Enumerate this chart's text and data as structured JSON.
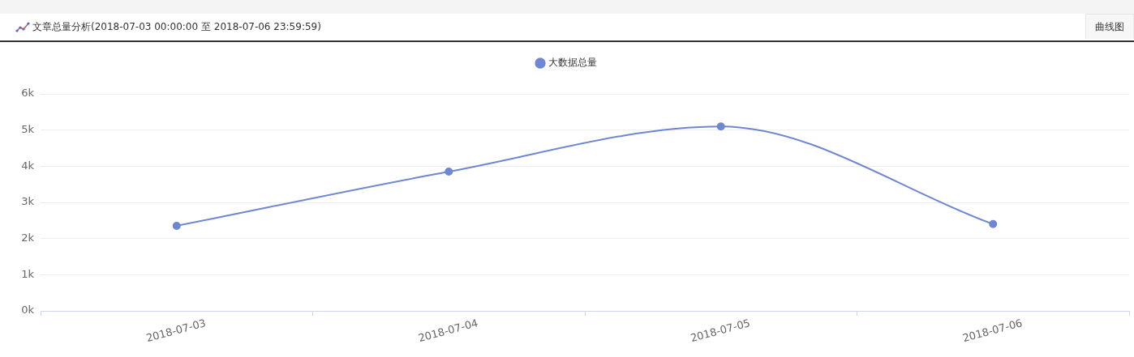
{
  "chart_data": {
    "type": "line",
    "title": "文章总量分析(2018-07-03 00:00:00 至 2018-07-06 23:59:59)",
    "annotations": [
      "曲线图"
    ],
    "categories": [
      "2018-07-03",
      "2018-07-04",
      "2018-07-05",
      "2018-07-06"
    ],
    "series": [
      {
        "name": "大数据总量",
        "color": "#6e87d2",
        "values": [
          2350,
          3850,
          5100,
          2400
        ]
      }
    ],
    "ylim": [
      0,
      6000
    ],
    "yticks": [
      {
        "value": 0,
        "label": "0k"
      },
      {
        "value": 1000,
        "label": "1k"
      },
      {
        "value": 2000,
        "label": "2k"
      },
      {
        "value": 3000,
        "label": "3k"
      },
      {
        "value": 4000,
        "label": "4k"
      },
      {
        "value": 5000,
        "label": "5k"
      },
      {
        "value": 6000,
        "label": "6k"
      }
    ],
    "grid": "y",
    "legend": "top",
    "marker": "circle",
    "line_style": "solid"
  }
}
